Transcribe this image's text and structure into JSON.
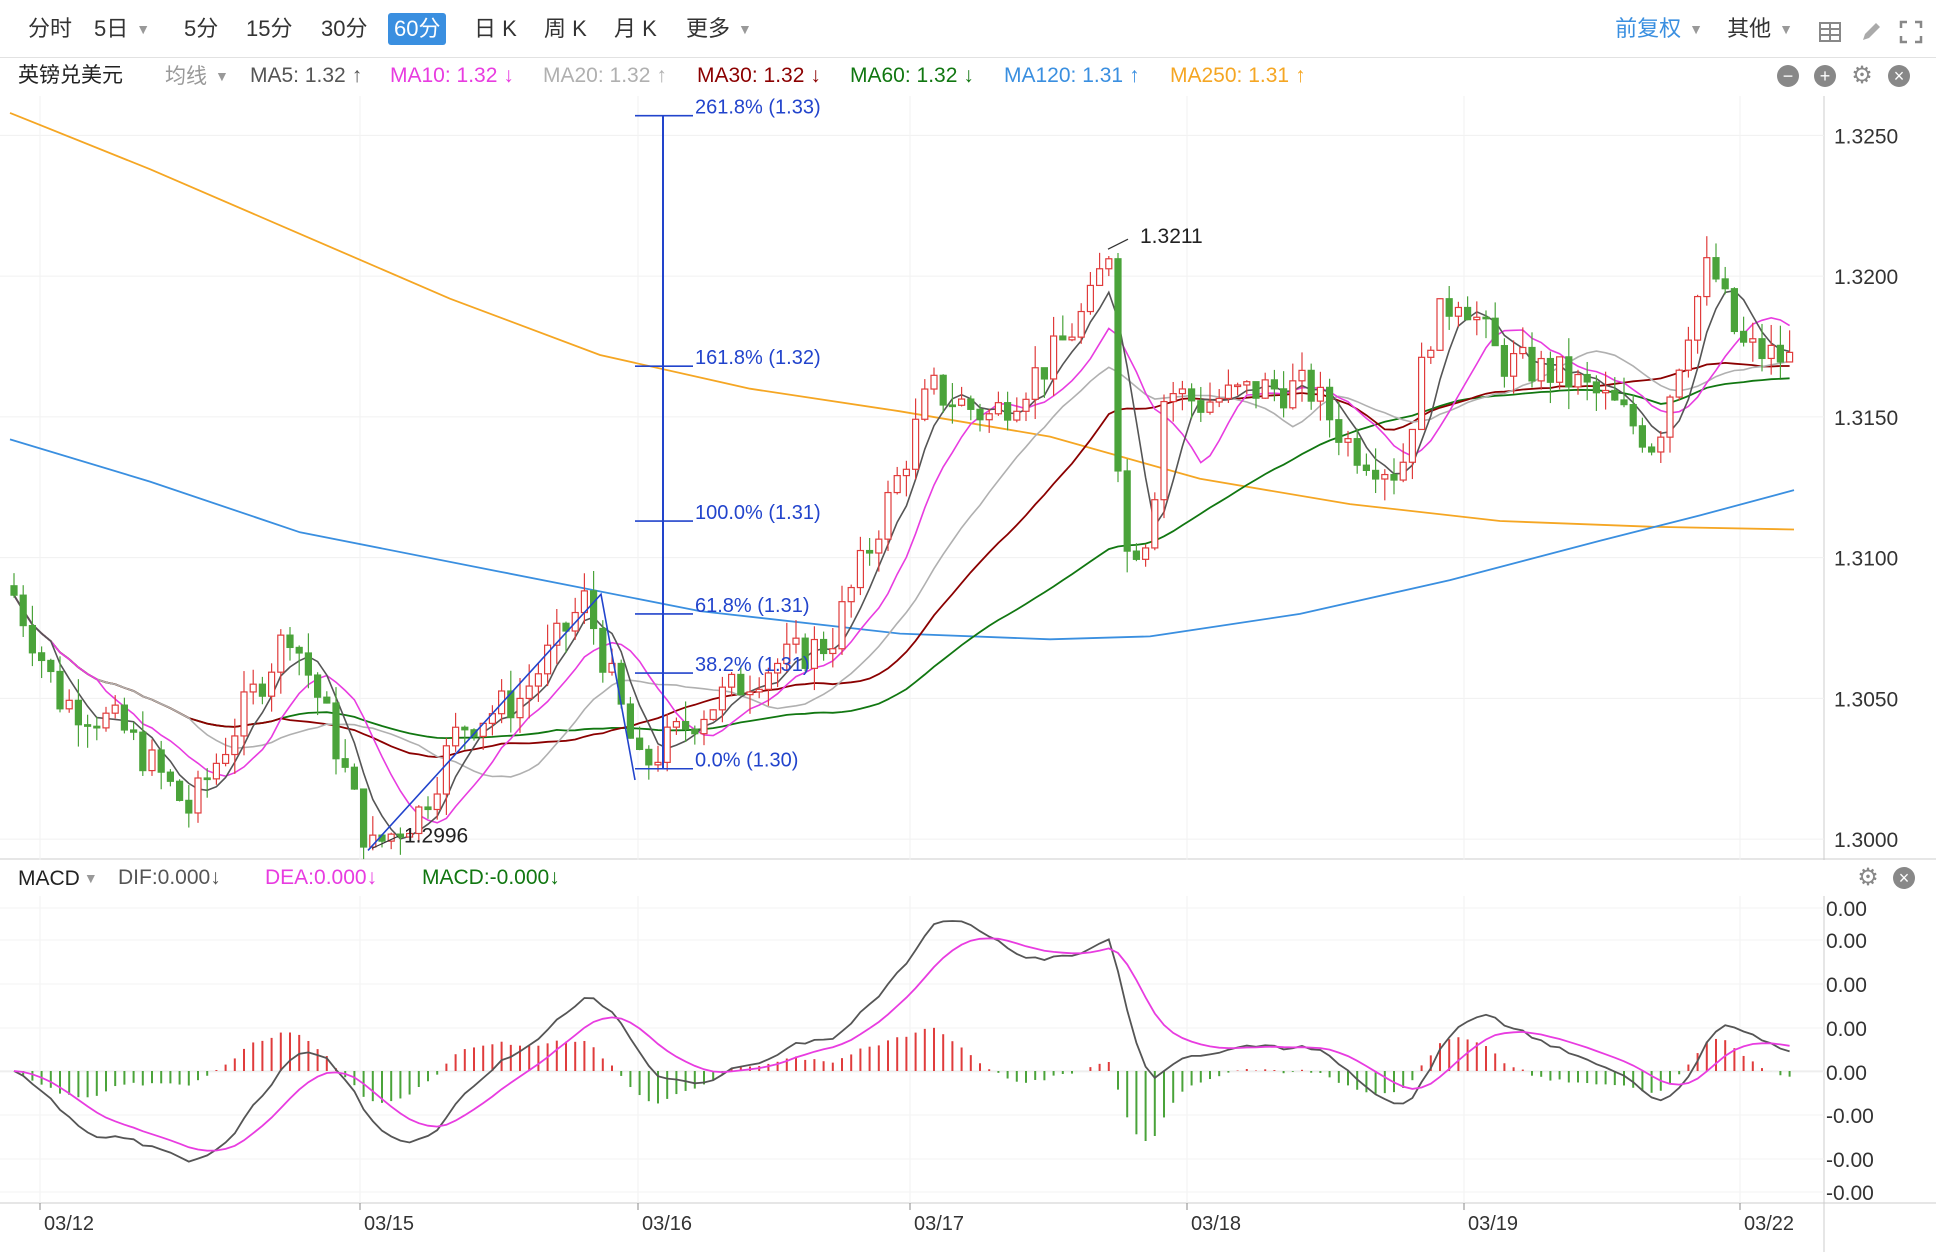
{
  "toolbar": {
    "timeframes": [
      {
        "label": "分时",
        "active": false
      },
      {
        "label": "5日",
        "active": false,
        "dropdown": true
      },
      {
        "label": "5分",
        "active": false
      },
      {
        "label": "15分",
        "active": false
      },
      {
        "label": "30分",
        "active": false
      },
      {
        "label": "60分",
        "active": true
      },
      {
        "label": "日 K",
        "active": false
      },
      {
        "label": "周 K",
        "active": false
      },
      {
        "label": "月 K",
        "active": false
      },
      {
        "label": "更多",
        "active": false,
        "dropdown": true
      }
    ],
    "adjust_label": "前复权",
    "other_label": "其他",
    "icons": [
      "grid-icon",
      "pen-icon",
      "fullscreen-icon"
    ]
  },
  "legend": {
    "symbol": "英镑兑美元",
    "ma_type": "均线",
    "items": [
      {
        "label": "MA5: 1.32",
        "arrow": "↑",
        "color": "#555555"
      },
      {
        "label": "MA10: 1.32",
        "arrow": "↓",
        "color": "#e83ce0"
      },
      {
        "label": "MA20: 1.32",
        "arrow": "↑",
        "color": "#b0b0b0"
      },
      {
        "label": "MA30: 1.32",
        "arrow": "↓",
        "color": "#8b0000"
      },
      {
        "label": "MA60: 1.32",
        "arrow": "↓",
        "color": "#117711"
      },
      {
        "label": "MA120: 1.31",
        "arrow": "↑",
        "color": "#3a8fe0"
      },
      {
        "label": "MA250: 1.31",
        "arrow": "↑",
        "color": "#f5a623"
      }
    ],
    "buttons": [
      "minus-icon",
      "plus-icon",
      "gear-icon",
      "close-icon"
    ]
  },
  "macd_header": {
    "name": "MACD",
    "items": [
      {
        "label": "DIF:0.000",
        "arrow": "↓",
        "color": "#555555"
      },
      {
        "label": "DEA:0.000",
        "arrow": "↓",
        "color": "#e83ce0"
      },
      {
        "label": "MACD:-0.000",
        "arrow": "↓",
        "color": "#117711"
      }
    ],
    "buttons": [
      "gear-icon",
      "close-icon"
    ]
  },
  "chart_data": [
    {
      "type": "candlestick",
      "ylim": [
        1.2994,
        1.3264
      ],
      "y_ticks": [
        "1.3250",
        "1.3200",
        "1.3150",
        "1.3100",
        "1.3050",
        "1.3000"
      ],
      "x_labels": [
        "03/12",
        "03/15",
        "03/16",
        "03/17",
        "03/18",
        "03/19",
        "03/22"
      ],
      "colors": {
        "up": "#e03c3c",
        "down": "#4aa33a"
      },
      "annotations": [
        {
          "text": "1.3211",
          "price": 1.3211
        },
        {
          "text": "1.2996",
          "price": 1.2996
        }
      ],
      "fibonacci": [
        {
          "text": "261.8% (1.33)",
          "price": 1.3257
        },
        {
          "text": "161.8% (1.32)",
          "price": 1.3168
        },
        {
          "text": "100.0% (1.31)",
          "price": 1.3113
        },
        {
          "text": "61.8% (1.31)",
          "price": 1.308
        },
        {
          "text": "38.2% (1.31)",
          "price": 1.3059
        },
        {
          "text": "0.0% (1.30)",
          "price": 1.3025
        }
      ]
    },
    {
      "type": "macd",
      "y_ticks": [
        "0.00",
        "0.00",
        "0.00",
        "0.00",
        "0.00",
        "-0.00",
        "-0.00",
        "-0.00"
      ],
      "series": [
        {
          "name": "DIF",
          "color": "#555555"
        },
        {
          "name": "DEA",
          "color": "#e83ce0"
        },
        {
          "name": "MACD",
          "color_pos": "#e03c3c",
          "color_neg": "#4aa33a"
        }
      ]
    }
  ]
}
